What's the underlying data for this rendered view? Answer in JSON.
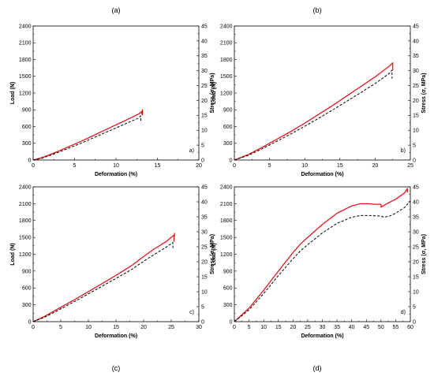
{
  "figure": {
    "captions": [
      "(a)",
      "(b)",
      "(c)",
      "(d)"
    ]
  },
  "chart_data": [
    {
      "type": "line",
      "panel_label": "a)",
      "xlabel": "Deformation (%)",
      "ylabel": "Load (N)",
      "y2label": "Stress (σ, MPa)",
      "xlim": [
        0,
        20
      ],
      "ylim": [
        0,
        2400
      ],
      "y2lim": [
        0,
        45
      ],
      "xticks": [
        0,
        5,
        10,
        15,
        20
      ],
      "yticks": [
        0,
        300,
        600,
        900,
        1200,
        1500,
        1800,
        2100,
        2400
      ],
      "y2ticks": [
        0,
        5,
        10,
        15,
        20,
        25,
        30,
        35,
        40,
        45
      ],
      "series": [
        {
          "style": "solid",
          "color": "#e8141c",
          "x": [
            0,
            1,
            2,
            3,
            4,
            5,
            6,
            7,
            8,
            9,
            10,
            11,
            12,
            12.8,
            13.1,
            13.1,
            13.2,
            13.2
          ],
          "y": [
            0,
            40,
            95,
            155,
            220,
            285,
            350,
            420,
            490,
            560,
            630,
            700,
            770,
            830,
            870,
            830,
            900,
            800
          ]
        },
        {
          "style": "dashed",
          "color": "#000000",
          "x": [
            0,
            1,
            2,
            3,
            4,
            5,
            6,
            7,
            8,
            9,
            10,
            11,
            12,
            12.7,
            13.0,
            13.0
          ],
          "y": [
            0,
            30,
            80,
            135,
            195,
            255,
            315,
            380,
            445,
            510,
            575,
            640,
            705,
            750,
            790,
            700
          ]
        }
      ]
    },
    {
      "type": "line",
      "panel_label": "b)",
      "xlabel": "Deformation (%)",
      "ylabel": "Load (N)",
      "y2label": "Stress (σ, MPa)",
      "xlim": [
        0,
        25
      ],
      "ylim": [
        0,
        2400
      ],
      "y2lim": [
        0,
        45
      ],
      "xticks": [
        0,
        5,
        10,
        15,
        20,
        25
      ],
      "yticks": [
        0,
        300,
        600,
        900,
        1200,
        1500,
        1800,
        2100,
        2400
      ],
      "y2ticks": [
        0,
        5,
        10,
        15,
        20,
        25,
        30,
        35,
        40,
        45
      ],
      "series": [
        {
          "style": "solid",
          "color": "#e8141c",
          "x": [
            0,
            2,
            4,
            6,
            8,
            10,
            12,
            14,
            16,
            18,
            20,
            22,
            22.5,
            22.5
          ],
          "y": [
            0,
            100,
            230,
            370,
            510,
            660,
            820,
            980,
            1150,
            1320,
            1490,
            1680,
            1740,
            1610
          ]
        },
        {
          "style": "dashed",
          "color": "#000000",
          "x": [
            0,
            2,
            4,
            6,
            8,
            10,
            12,
            14,
            16,
            18,
            20,
            22,
            22.4,
            22.4
          ],
          "y": [
            0,
            85,
            205,
            335,
            465,
            605,
            750,
            900,
            1055,
            1210,
            1370,
            1550,
            1610,
            1460
          ]
        }
      ]
    },
    {
      "type": "line",
      "panel_label": "c)",
      "xlabel": "Deformation (%)",
      "ylabel": "Load (N)",
      "y2label": "Stress (σ, MPa)",
      "xlim": [
        0,
        30
      ],
      "ylim": [
        0,
        2400
      ],
      "y2lim": [
        0,
        45
      ],
      "xticks": [
        0,
        5,
        10,
        15,
        20,
        25,
        30
      ],
      "yticks": [
        0,
        300,
        600,
        900,
        1200,
        1500,
        1800,
        2100,
        2400
      ],
      "y2ticks": [
        0,
        5,
        10,
        15,
        20,
        25,
        30,
        35,
        40,
        45
      ],
      "series": [
        {
          "style": "solid",
          "color": "#e8141c",
          "x": [
            0,
            2,
            4,
            6,
            8,
            10,
            12,
            14,
            16,
            18,
            20,
            22,
            24,
            25.5,
            25.5,
            25.6
          ],
          "y": [
            0,
            90,
            200,
            310,
            420,
            535,
            650,
            765,
            885,
            1010,
            1160,
            1300,
            1420,
            1540,
            1430,
            1580
          ]
        },
        {
          "style": "dashed",
          "color": "#000000",
          "x": [
            0,
            2,
            4,
            6,
            8,
            10,
            12,
            14,
            16,
            18,
            20,
            22,
            24,
            25.3,
            25.3
          ],
          "y": [
            0,
            75,
            175,
            280,
            385,
            495,
            605,
            715,
            825,
            940,
            1075,
            1200,
            1320,
            1410,
            1300
          ]
        }
      ]
    },
    {
      "type": "line",
      "panel_label": "d)",
      "xlabel": "Deformation (%)",
      "ylabel": "Load (N)",
      "y2label": "Stress (σ, MPa)",
      "xlim": [
        0,
        60
      ],
      "ylim": [
        0,
        2400
      ],
      "y2lim": [
        0,
        45
      ],
      "xticks": [
        0,
        5,
        10,
        15,
        20,
        25,
        30,
        35,
        40,
        45,
        50,
        55,
        60
      ],
      "yticks": [
        0,
        300,
        600,
        900,
        1200,
        1500,
        1800,
        2100,
        2400
      ],
      "y2ticks": [
        0,
        5,
        10,
        15,
        20,
        25,
        30,
        35,
        40,
        45
      ],
      "series": [
        {
          "style": "solid",
          "color": "#e8141c",
          "x": [
            0,
            5,
            10,
            15,
            20,
            22.5,
            25,
            30,
            35,
            40,
            43,
            46,
            48,
            50,
            50,
            52,
            55,
            58,
            59,
            59
          ],
          "y": [
            0,
            240,
            560,
            900,
            1230,
            1380,
            1500,
            1730,
            1930,
            2060,
            2100,
            2100,
            2090,
            2090,
            2040,
            2100,
            2180,
            2290,
            2370,
            2300
          ]
        },
        {
          "style": "dashed",
          "color": "#000000",
          "x": [
            0,
            5,
            10,
            15,
            20,
            22.5,
            25,
            30,
            35,
            40,
            43,
            46,
            48,
            50,
            51,
            53,
            55,
            58,
            60
          ],
          "y": [
            0,
            210,
            500,
            820,
            1120,
            1260,
            1370,
            1580,
            1750,
            1860,
            1890,
            1890,
            1885,
            1880,
            1860,
            1880,
            1930,
            2030,
            2150
          ]
        }
      ]
    }
  ]
}
